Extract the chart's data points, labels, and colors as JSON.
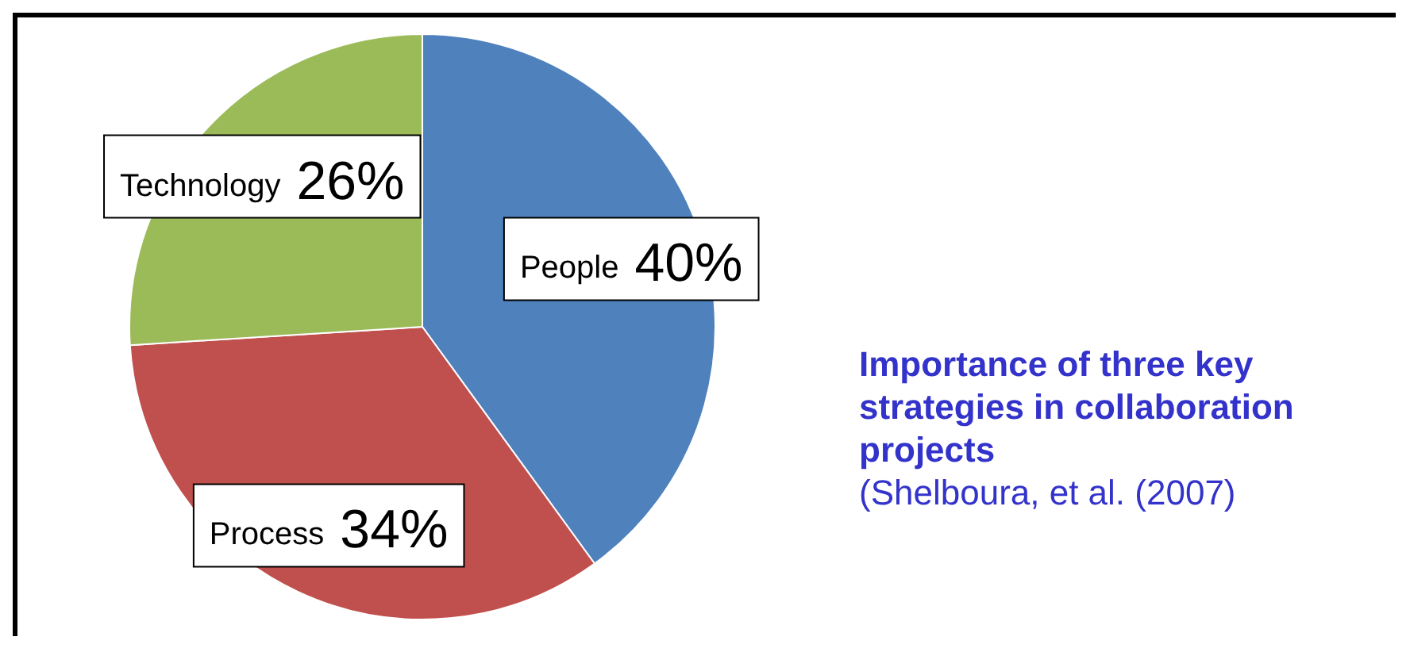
{
  "chart_data": {
    "type": "pie",
    "title": "Importance of three key strategies in collaboration projects",
    "categories": [
      "People",
      "Process",
      "Technology"
    ],
    "values": [
      40,
      34,
      26
    ],
    "colors": [
      "#4f81bd",
      "#c0504d",
      "#9bbb59"
    ],
    "value_labels": [
      "40%",
      "34%",
      "26%"
    ],
    "legend": false,
    "annotations": [
      "(Shelboura, et al. (2007)"
    ]
  }
}
